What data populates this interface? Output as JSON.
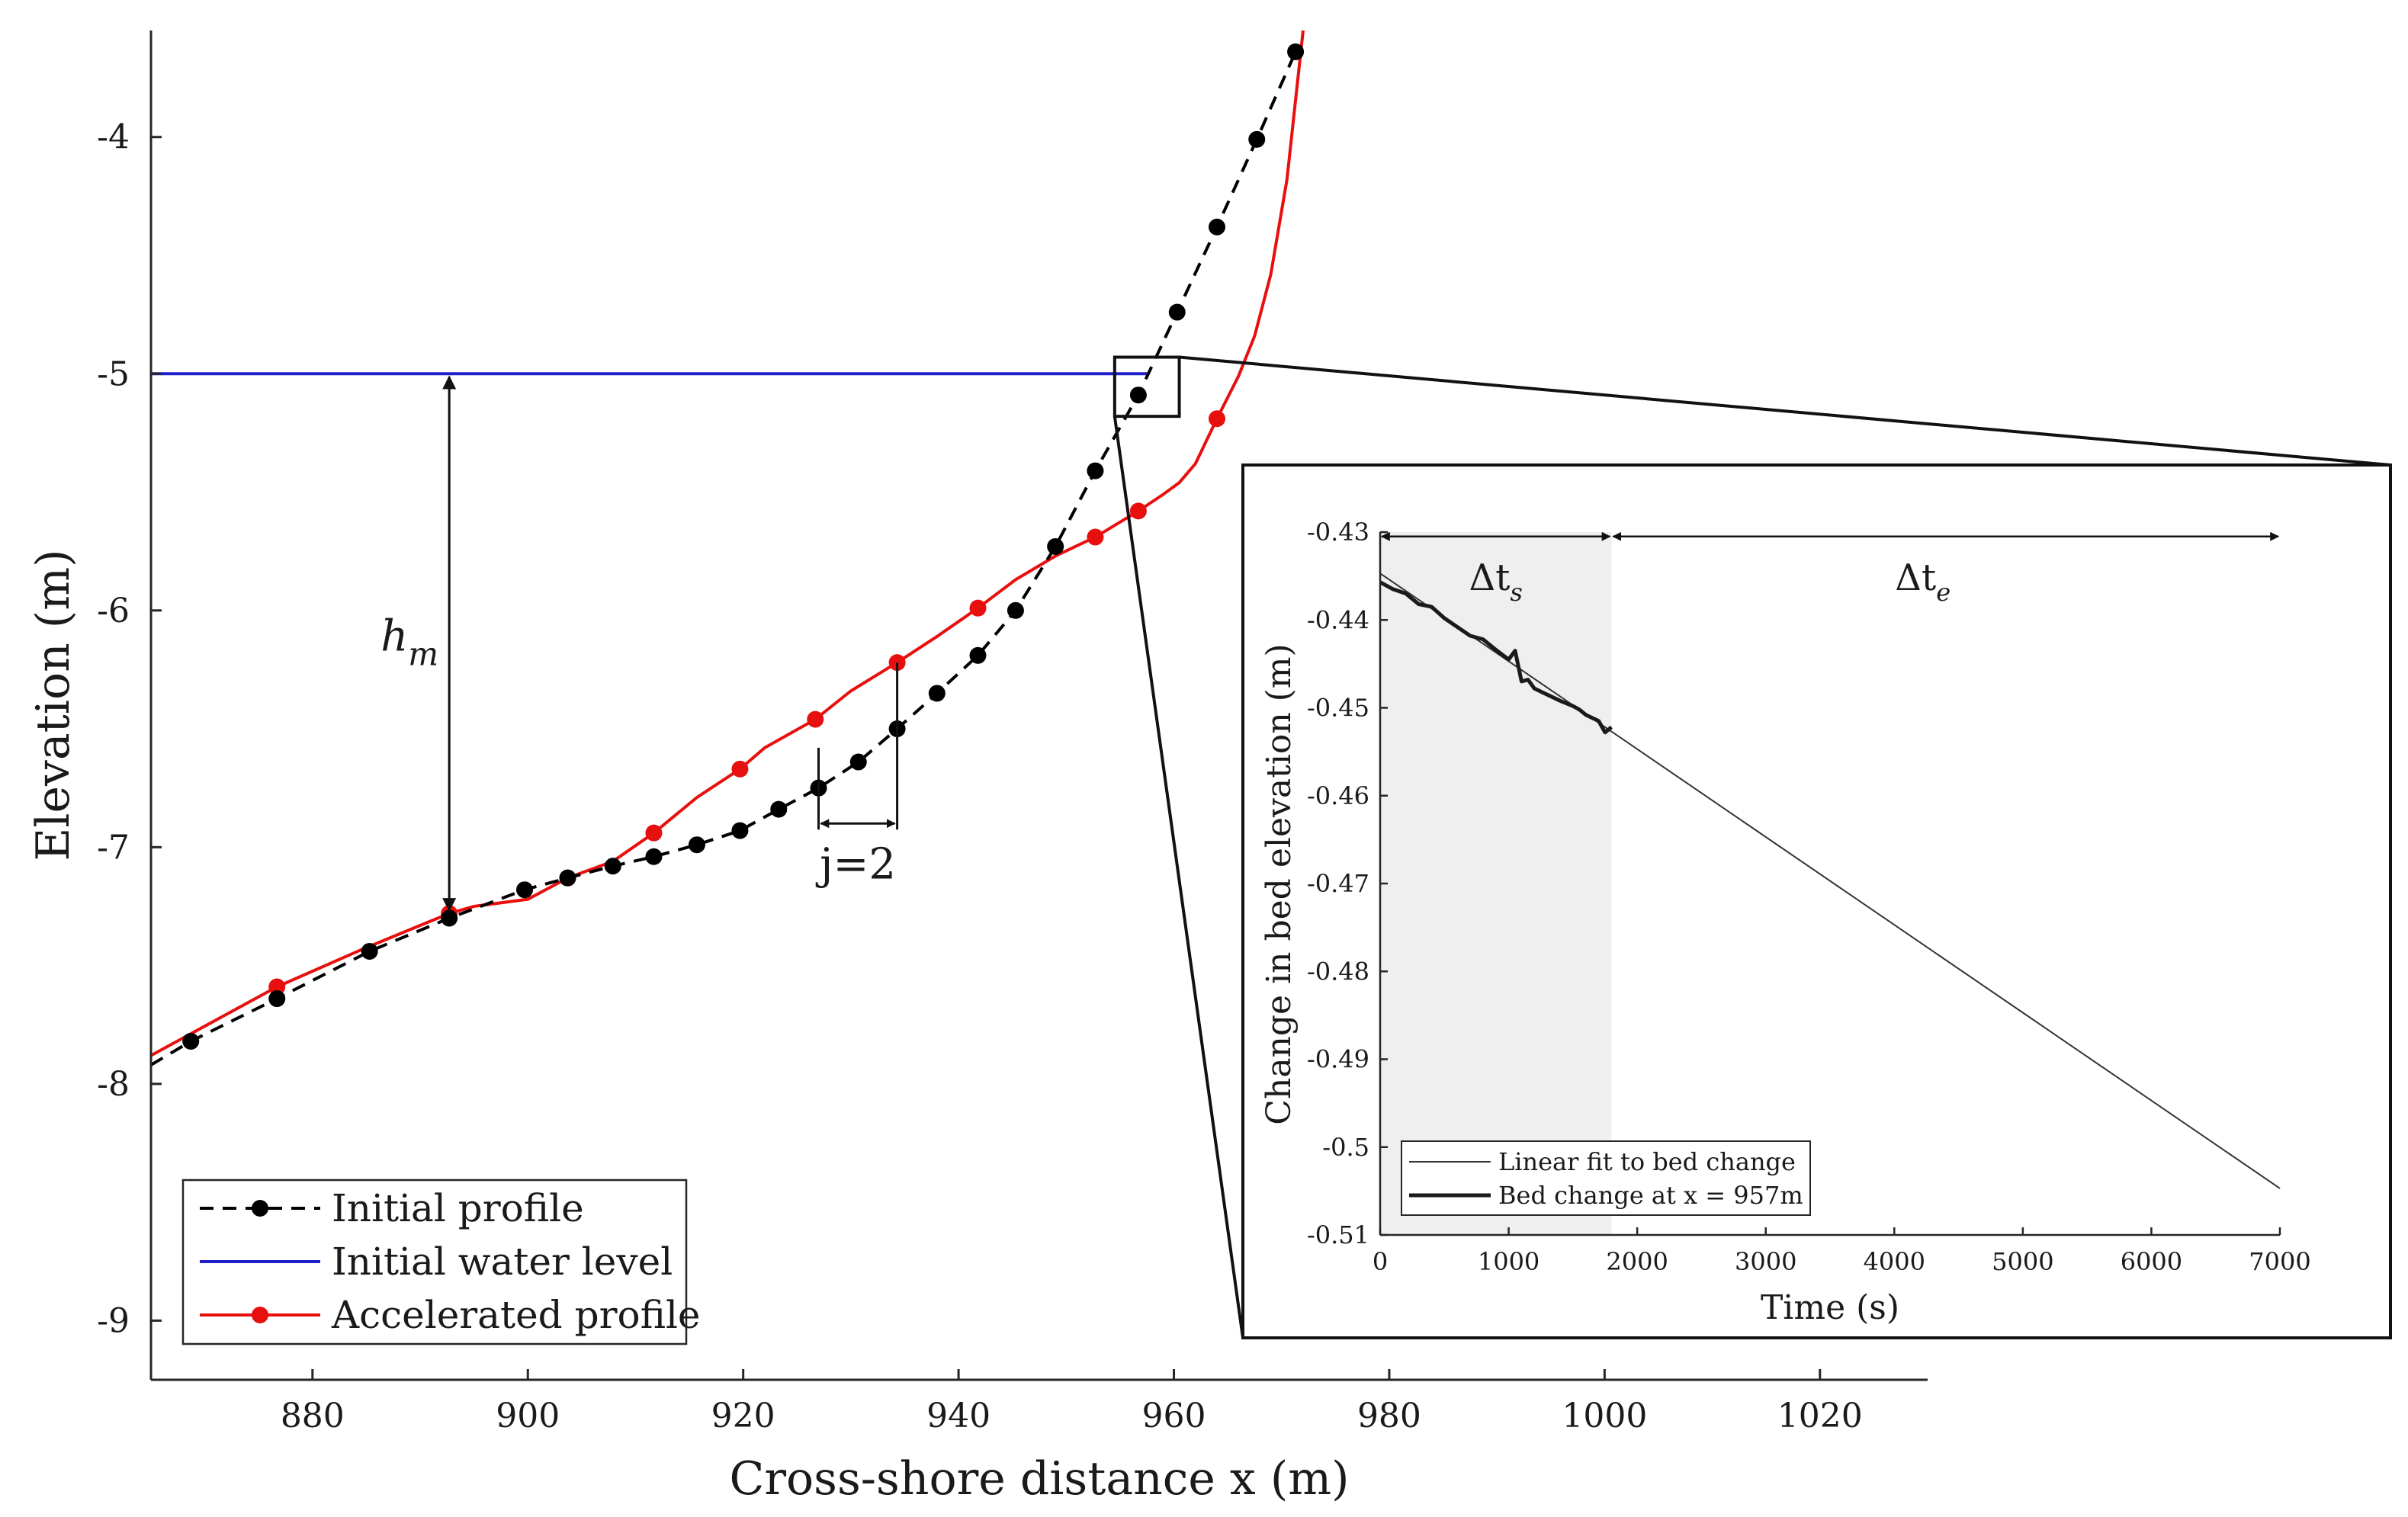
{
  "chart_data": [
    {
      "type": "line",
      "title": "",
      "xlabel": "Cross-shore distance x (m)",
      "ylabel": "Elevation (m)",
      "xlim": [
        865,
        1030
      ],
      "ylim": [
        -9.25,
        -3.55
      ],
      "xticks": [
        880,
        900,
        920,
        940,
        960,
        980,
        1000,
        1020
      ],
      "yticks": [
        -9,
        -8,
        -7,
        -6,
        -5,
        -4
      ],
      "xtick_labels": [
        "880",
        "900",
        "920",
        "940",
        "960",
        "980",
        "1000",
        "1020"
      ],
      "ytick_labels": [
        "-9",
        "-8",
        "-7",
        "-6",
        "-5",
        "-4"
      ],
      "grid": false,
      "legend_position": "bottom-left",
      "series": [
        {
          "name": "Initial profile",
          "style": "dashed-with-markers",
          "color": "#000000",
          "x": [
            865,
            868.7,
            876.7,
            885.3,
            892.7,
            899.7,
            903.7,
            907.9,
            911.7,
            915.7,
            919.7,
            923.3,
            927,
            930.7,
            934.3,
            938,
            941.8,
            945.3,
            949,
            952.7,
            956.7,
            960.3,
            964,
            967.7,
            971.3
          ],
          "y": [
            -7.92,
            -7.82,
            -7.64,
            -7.44,
            -7.3,
            -7.18,
            -7.13,
            -7.08,
            -7.04,
            -6.99,
            -6.93,
            -6.84,
            -6.75,
            -6.64,
            -6.5,
            -6.35,
            -6.19,
            -6.0,
            -5.73,
            -5.41,
            -5.09,
            -4.74,
            -4.38,
            -4.01,
            -3.64
          ],
          "marker_from_index": 1
        },
        {
          "name": "Initial water level",
          "style": "solid",
          "color": "#1f1fcc",
          "x": [
            865,
            957.5
          ],
          "y": [
            -5.0,
            -5.0
          ]
        },
        {
          "name": "Accelerated profile",
          "style": "solid-with-markers",
          "color": "#e8100f",
          "x": [
            865,
            876.7,
            884.7,
            892.7,
            895,
            900,
            903.7,
            907.9,
            911.7,
            915.7,
            919.7,
            922,
            926.7,
            930,
            934.3,
            938,
            941.8,
            945.3,
            949,
            952.7,
            956.7,
            959,
            960.5,
            962,
            964,
            966,
            967.5,
            969,
            970.5,
            972
          ],
          "y": [
            -7.88,
            -7.59,
            -7.43,
            -7.28,
            -7.25,
            -7.22,
            -7.13,
            -7.06,
            -6.94,
            -6.79,
            -6.67,
            -6.58,
            -6.46,
            -6.34,
            -6.22,
            -6.11,
            -5.99,
            -5.87,
            -5.77,
            -5.69,
            -5.58,
            -5.51,
            -5.46,
            -5.38,
            -5.19,
            -5.01,
            -4.84,
            -4.58,
            -4.18,
            -3.55
          ],
          "markers_at": [
            1,
            3,
            6,
            8,
            10,
            12,
            14,
            16,
            19,
            20,
            24
          ]
        }
      ],
      "legend": [
        "Initial profile",
        "Initial water level",
        "Accelerated profile"
      ],
      "annotations": {
        "hm_label": "h",
        "hm_sub": "m",
        "hm_x": 892.7,
        "hm_y_top": -5.0,
        "hm_y_bottom": -7.28,
        "j_label": "j=2",
        "j_x": [
          927,
          934.3
        ],
        "j_y": -6.9,
        "zoom_box_x": [
          954.5,
          960.5
        ],
        "zoom_box_y": [
          -5.18,
          -4.93
        ]
      }
    },
    {
      "type": "line",
      "title": "",
      "xlabel": "Time (s)",
      "ylabel": "Change in bed elevation (m)",
      "xlim": [
        0,
        7000
      ],
      "ylim": [
        -0.51,
        -0.43
      ],
      "xticks": [
        0,
        1000,
        2000,
        3000,
        4000,
        5000,
        6000,
        7000
      ],
      "yticks": [
        -0.51,
        -0.5,
        -0.49,
        -0.48,
        -0.47,
        -0.46,
        -0.45,
        -0.44,
        -0.43
      ],
      "xtick_labels": [
        "0",
        "1000",
        "2000",
        "3000",
        "4000",
        "5000",
        "6000",
        "7000"
      ],
      "ytick_labels": [
        "-0.51",
        "-0.5",
        "-0.49",
        "-0.48",
        "-0.47",
        "-0.46",
        "-0.45",
        "-0.44",
        "-0.43"
      ],
      "grid": false,
      "legend_position": "bottom-left",
      "shaded_region_x": [
        0,
        1800
      ],
      "series": [
        {
          "name": "Linear fit to bed change",
          "style": "solid-thin",
          "color": "#333333",
          "x": [
            0,
            7000
          ],
          "y": [
            -0.4347,
            -0.5047
          ]
        },
        {
          "name": "Bed change at x = 957m",
          "style": "solid-thick",
          "color": "#1a1a1a",
          "x": [
            0,
            100,
            200,
            300,
            400,
            500,
            600,
            700,
            800,
            900,
            1000,
            1050,
            1100,
            1150,
            1200,
            1300,
            1400,
            1500,
            1550,
            1600,
            1700,
            1750,
            1800
          ],
          "y": [
            -0.4357,
            -0.4365,
            -0.437,
            -0.4382,
            -0.4385,
            -0.4398,
            -0.4408,
            -0.4418,
            -0.4422,
            -0.4434,
            -0.4445,
            -0.4435,
            -0.447,
            -0.4468,
            -0.4478,
            -0.4485,
            -0.4492,
            -0.4498,
            -0.4502,
            -0.4508,
            -0.4515,
            -0.4528,
            -0.4522
          ]
        }
      ],
      "legend": [
        "Linear fit to bed change",
        "Bed change at x = 957m"
      ],
      "annotations": {
        "dts_label": "Δt",
        "dts_sub": "s",
        "dts_range": [
          0,
          1800
        ],
        "dte_label": "Δt",
        "dte_sub": "e",
        "dte_range": [
          1800,
          7000
        ],
        "arrow_y": -0.4305
      }
    }
  ]
}
